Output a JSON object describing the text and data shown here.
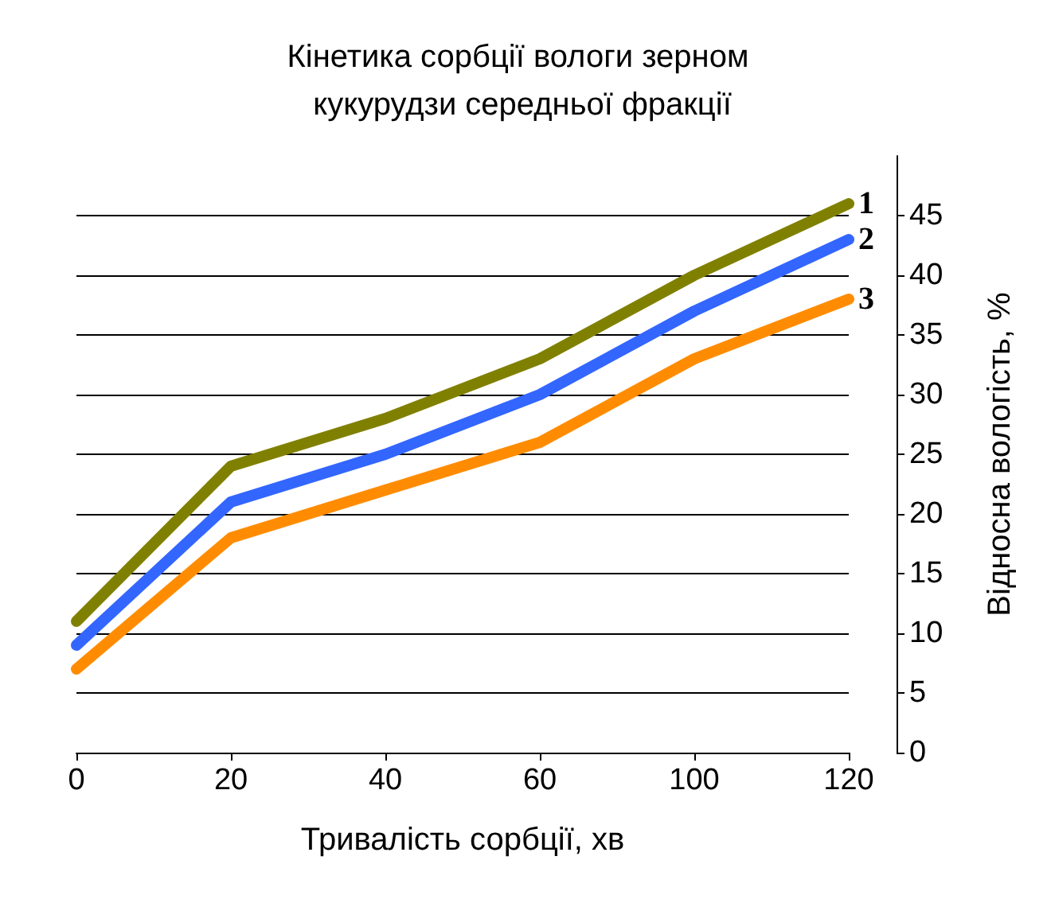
{
  "chart_data": {
    "type": "line",
    "title": "Кінетика сорбції вологи зерном кукурудзи середньої фракції",
    "xlabel": "Тривалість сорбції, хв",
    "ylabel": "Відносна вологість, %",
    "categories": [
      "0",
      "20",
      "40",
      "60",
      "100",
      "120"
    ],
    "series": [
      {
        "name": "1",
        "color": "#808000",
        "values": [
          11,
          24,
          28,
          33,
          40,
          46
        ]
      },
      {
        "name": "2",
        "color": "#3366ff",
        "values": [
          9,
          21,
          25,
          30,
          37,
          43
        ]
      },
      {
        "name": "3",
        "color": "#ff8c00",
        "values": [
          7,
          18,
          22,
          26,
          33,
          38
        ]
      }
    ],
    "ylim": [
      0,
      50
    ],
    "yticks": [
      0,
      5,
      10,
      15,
      20,
      25,
      30,
      35,
      40,
      45
    ],
    "grid": "y",
    "legend": false,
    "line_style": "solid"
  }
}
